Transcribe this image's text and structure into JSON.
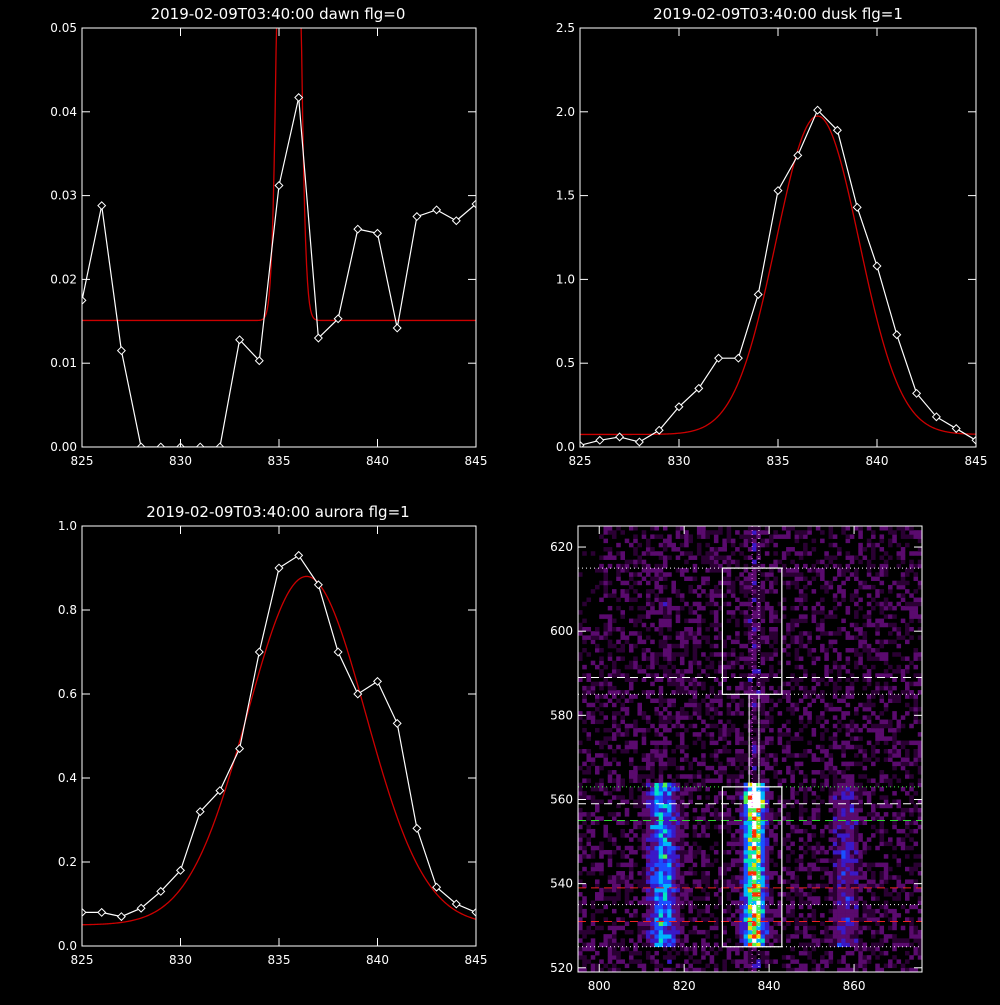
{
  "chart_data": [
    {
      "type": "line",
      "title": "2019-02-09T03:40:00 dawn flg=0",
      "xlim": [
        825,
        845
      ],
      "ylim": [
        0,
        0.05
      ],
      "x_ticks": [
        825,
        830,
        835,
        840,
        845
      ],
      "x_tick_labels": [
        "825",
        "830",
        "835",
        "840",
        "845"
      ],
      "y_ticks": [
        0,
        0.01,
        0.02,
        0.03,
        0.04,
        0.05
      ],
      "y_tick_labels": [
        "0.00",
        "0.01",
        "0.02",
        "0.03",
        "0.04",
        "0.05"
      ],
      "observed": {
        "color": "#ffffff",
        "marker": "diamond",
        "x": [
          825,
          826,
          827,
          828,
          829,
          830,
          831,
          832,
          833,
          834,
          835,
          836,
          837,
          838,
          839,
          840,
          841,
          842,
          843,
          844,
          845
        ],
        "y": [
          0.0175,
          0.0288,
          0.0115,
          0.0,
          0.0,
          0.0,
          0.0,
          0.0,
          0.0128,
          0.0103,
          0.0312,
          0.0417,
          0.013,
          0.0153,
          0.026,
          0.0255,
          0.0142,
          0.0275,
          0.0283,
          0.027,
          0.029
        ]
      },
      "fit": {
        "color": "#cc0000",
        "baseline": 0.0151,
        "amplitude": 0.18,
        "center": 835.5,
        "sigma": 0.35
      }
    },
    {
      "type": "line",
      "title": "2019-02-09T03:40:00 dusk flg=1",
      "xlim": [
        825,
        845
      ],
      "ylim": [
        0,
        2.5
      ],
      "x_ticks": [
        825,
        830,
        835,
        840,
        845
      ],
      "x_tick_labels": [
        "825",
        "830",
        "835",
        "840",
        "845"
      ],
      "y_ticks": [
        0,
        0.5,
        1.0,
        1.5,
        2.0,
        2.5
      ],
      "y_tick_labels": [
        "0.0",
        "0.5",
        "1.0",
        "1.5",
        "2.0",
        "2.5"
      ],
      "observed": {
        "color": "#ffffff",
        "marker": "diamond",
        "x": [
          825,
          826,
          827,
          828,
          829,
          830,
          831,
          832,
          833,
          834,
          835,
          836,
          837,
          838,
          839,
          840,
          841,
          842,
          843,
          844,
          845
        ],
        "y": [
          0.01,
          0.04,
          0.06,
          0.03,
          0.1,
          0.24,
          0.35,
          0.53,
          0.53,
          0.91,
          1.53,
          1.74,
          2.01,
          1.89,
          1.43,
          1.08,
          0.67,
          0.32,
          0.18,
          0.11,
          0.04
        ]
      },
      "fit": {
        "color": "#cc0000",
        "baseline": 0.075,
        "amplitude": 1.9,
        "center": 837.0,
        "sigma": 2.1
      }
    },
    {
      "type": "line",
      "title": "2019-02-09T03:40:00 aurora flg=1",
      "xlim": [
        825,
        845
      ],
      "ylim": [
        0,
        1.0
      ],
      "x_ticks": [
        825,
        830,
        835,
        840,
        845
      ],
      "x_tick_labels": [
        "825",
        "830",
        "835",
        "840",
        "845"
      ],
      "y_ticks": [
        0,
        0.2,
        0.4,
        0.6,
        0.8,
        1.0
      ],
      "y_tick_labels": [
        "0.0",
        "0.2",
        "0.4",
        "0.6",
        "0.8",
        "1.0"
      ],
      "observed": {
        "color": "#ffffff",
        "marker": "diamond",
        "x": [
          825,
          826,
          827,
          828,
          829,
          830,
          831,
          832,
          833,
          834,
          835,
          836,
          837,
          838,
          839,
          840,
          841,
          842,
          843,
          844,
          845
        ],
        "y": [
          0.08,
          0.08,
          0.07,
          0.09,
          0.13,
          0.18,
          0.32,
          0.37,
          0.47,
          0.7,
          0.9,
          0.93,
          0.86,
          0.7,
          0.6,
          0.63,
          0.53,
          0.28,
          0.14,
          0.1,
          0.08
        ]
      },
      "fit": {
        "color": "#cc0000",
        "baseline": 0.05,
        "amplitude": 0.83,
        "center": 836.4,
        "sigma": 3.0
      }
    },
    {
      "type": "heatmap",
      "title": "",
      "xlim": [
        795,
        876
      ],
      "ylim": [
        519,
        625
      ],
      "x_ticks": [
        800,
        820,
        840,
        860
      ],
      "x_tick_labels": [
        "800",
        "820",
        "840",
        "860"
      ],
      "y_ticks": [
        520,
        540,
        560,
        580,
        600,
        620
      ],
      "y_tick_labels": [
        "520",
        "540",
        "560",
        "580",
        "600",
        "620"
      ],
      "colormap": [
        "#2a0033",
        "#5a0a6e",
        "#3a18c8",
        "#1a4fff",
        "#00b4ff",
        "#00e6c0",
        "#50f050",
        "#e8e000",
        "#ff3000",
        "#ffffff"
      ],
      "bands": [
        {
          "center": 836.5,
          "width": 1.6,
          "strength": 1.0
        },
        {
          "center": 815.0,
          "width": 2.2,
          "strength": 0.5
        },
        {
          "center": 858.0,
          "width": 2.0,
          "strength": 0.22
        }
      ],
      "emission_y_range": [
        525,
        563
      ],
      "hot_spot": {
        "x": 836.5,
        "y": 560
      },
      "vlines": [
        {
          "x": 836.0,
          "color": "#ff60ff",
          "style": "dotted"
        },
        {
          "x": 837.6,
          "color": "#ffffff",
          "style": "dotted"
        }
      ],
      "hlines": [
        {
          "y": 615,
          "color": "#ffffff",
          "style": "dotted"
        },
        {
          "y": 589,
          "color": "#ffffff",
          "style": "dashed"
        },
        {
          "y": 585,
          "color": "#ffffff",
          "style": "dotted"
        },
        {
          "y": 563,
          "color": "#44ff44",
          "style": "dotted"
        },
        {
          "y": 559,
          "color": "#ffffff",
          "style": "dashed"
        },
        {
          "y": 555,
          "color": "#33dd33",
          "style": "dashed"
        },
        {
          "y": 539,
          "color": "#ee2222",
          "style": "dashed"
        },
        {
          "y": 535,
          "color": "#ffffff",
          "style": "dotted"
        },
        {
          "y": 531,
          "color": "#ee2222",
          "style": "dashed"
        },
        {
          "y": 525,
          "color": "#ffffff",
          "style": "dotted"
        }
      ],
      "boxes": [
        {
          "x0": 829,
          "x1": 843,
          "y0": 585,
          "y1": 615
        },
        {
          "x0": 829,
          "x1": 843,
          "y0": 525,
          "y1": 563
        }
      ]
    }
  ]
}
